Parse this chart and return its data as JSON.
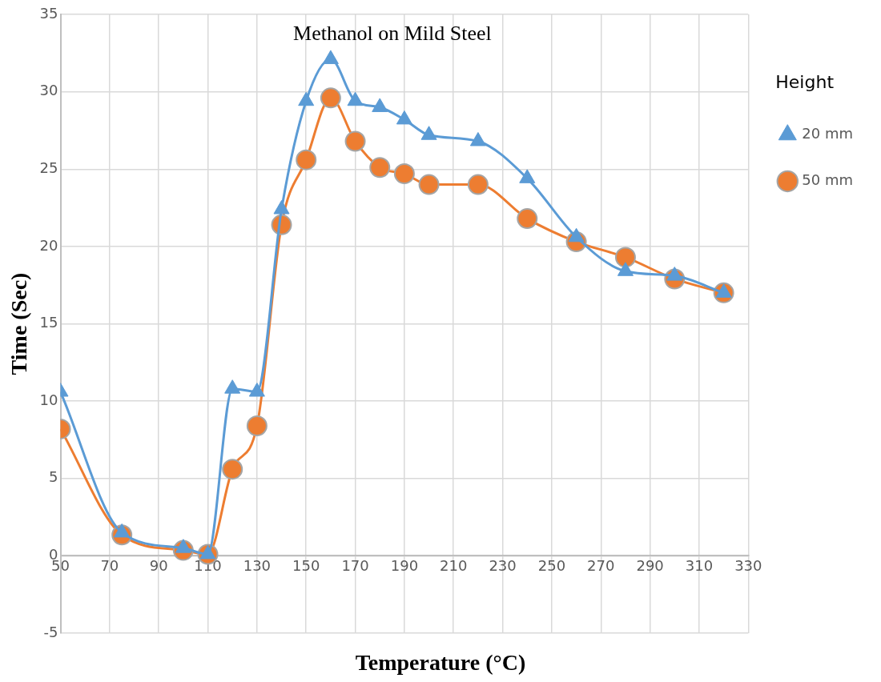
{
  "chart_data": {
    "type": "line",
    "title": "Methanol on Mild Steel",
    "xlabel": "Temperature (°C)",
    "ylabel": "Time (Sec)",
    "legend_title": "Height",
    "legend": "top right",
    "grid": true,
    "line_style": "solid",
    "x": [
      50,
      75,
      100,
      110,
      120,
      130,
      140,
      150,
      160,
      170,
      180,
      190,
      200,
      220,
      240,
      260,
      280,
      300,
      320
    ],
    "xlim": [
      50,
      330
    ],
    "xticks": [
      50,
      70,
      90,
      110,
      130,
      150,
      170,
      190,
      210,
      230,
      250,
      270,
      290,
      310,
      330
    ],
    "ylim": [
      -5,
      35
    ],
    "yticks": [
      -5,
      0,
      5,
      10,
      15,
      20,
      25,
      30,
      35
    ],
    "series": [
      {
        "name": "20 mm",
        "color": "#5b9bd5",
        "marker": "triangle",
        "values": [
          10.6,
          1.5,
          0.5,
          0.1,
          10.8,
          10.6,
          22.4,
          29.4,
          32.1,
          29.4,
          29.0,
          28.2,
          27.2,
          26.8,
          24.4,
          20.6,
          18.4,
          18.1,
          17.0
        ]
      },
      {
        "name": "50 mm",
        "color": "#ed7d31",
        "marker": "circle",
        "values": [
          8.2,
          1.35,
          0.35,
          0.1,
          5.6,
          8.4,
          21.4,
          25.6,
          29.6,
          26.8,
          25.1,
          24.7,
          24.0,
          24.0,
          21.8,
          20.3,
          19.3,
          17.9,
          17.0
        ]
      }
    ]
  }
}
